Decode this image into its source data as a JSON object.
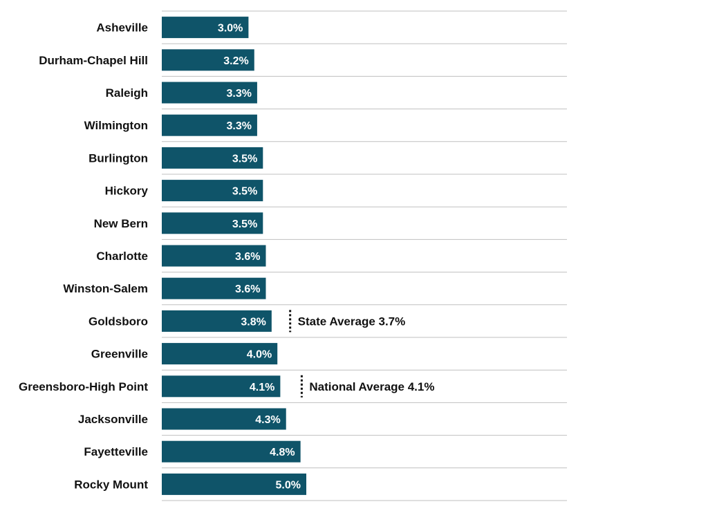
{
  "colors": {
    "bar": "#0f5469",
    "gridline": "#bfbfbf",
    "text": "#111111",
    "bar_label": "#ffffff",
    "reference_line": "#111111"
  },
  "chart_data": {
    "type": "bar",
    "orientation": "horizontal",
    "title": "",
    "xlabel": "",
    "ylabel": "",
    "grid": "horizontal separators between categories",
    "xlim": [
      0,
      7.0
    ],
    "categories": [
      "Asheville",
      "Durham-Chapel Hill",
      "Raleigh",
      "Wilmington",
      "Burlington",
      "Hickory",
      "New Bern",
      "Charlotte",
      "Winston-Salem",
      "Goldsboro",
      "Greenville",
      "Greensboro-High Point",
      "Jacksonville",
      "Fayetteville",
      "Rocky Mount"
    ],
    "values": [
      3.0,
      3.2,
      3.3,
      3.3,
      3.5,
      3.5,
      3.5,
      3.6,
      3.6,
      3.8,
      4.0,
      4.1,
      4.3,
      4.8,
      5.0
    ],
    "value_labels": [
      "3.0%",
      "3.2%",
      "3.3%",
      "3.3%",
      "3.5%",
      "3.5%",
      "3.5%",
      "3.6%",
      "3.6%",
      "3.8%",
      "4.0%",
      "4.1%",
      "4.3%",
      "4.8%",
      "5.0%"
    ],
    "reference_lines": [
      {
        "label": "State Average 3.7%",
        "value": 3.7,
        "category": "Goldsboro"
      },
      {
        "label": "National Average 4.1%",
        "value": 4.1,
        "category": "Greensboro-High Point"
      }
    ]
  }
}
